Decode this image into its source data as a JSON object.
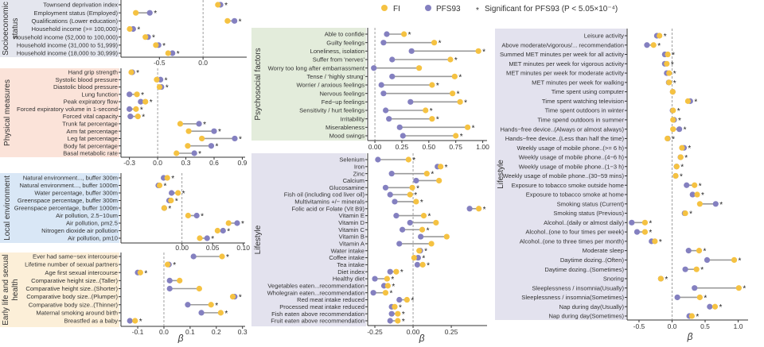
{
  "legend": {
    "fi_label": "FI",
    "pfs_label": "PFS93",
    "sig_symbol": "*",
    "sig_label": "Significant for PFS93 (P < 5.05×10⁻⁴)"
  },
  "colors": {
    "fi": "#f5c242",
    "pfs93": "#8480c0",
    "segment": "#9a9a9a"
  },
  "x_axis_label": "β",
  "chart_data": [
    {
      "type": "dumbbell",
      "group": "Socioeconomic status",
      "background": "#e4e6ee",
      "ticks": [
        "-0.5",
        "0.0"
      ],
      "tick_values": [
        -0.5,
        0.0
      ],
      "xlim": [
        -0.94,
        0.5
      ],
      "rows": [
        {
          "label": "Townsend deprivation index",
          "fi": 0.17,
          "pfs": 0.2,
          "sig": true
        },
        {
          "label": "Employment status (Employed)",
          "fi": -0.77,
          "pfs": -0.61,
          "sig": true
        },
        {
          "label": "Qualifications (Lower education)",
          "fi": 0.28,
          "pfs": 0.36,
          "sig": true
        },
        {
          "label": "Household income (>= 100,000)",
          "fi": -0.84,
          "pfs": -0.8,
          "sig": true
        },
        {
          "label": "Household income (52,000 to 100,000)",
          "fi": -0.66,
          "pfs": -0.63,
          "sig": true
        },
        {
          "label": "Household income (31,000 to 51,999)",
          "fi": -0.54,
          "pfs": -0.51,
          "sig": true
        },
        {
          "label": "Household income (18,000 to 30,999)",
          "fi": -0.4,
          "pfs": -0.35,
          "sig": true
        }
      ]
    },
    {
      "type": "dumbbell",
      "group": "Physical measures",
      "background": "#fbe3d9",
      "ticks": [
        "-0.3",
        "0.0",
        "0.3",
        "0.6",
        "0.9"
      ],
      "tick_values": [
        -0.3,
        0.0,
        0.3,
        0.6,
        0.9
      ],
      "xlim": [
        -0.39,
        0.93
      ],
      "rows": [
        {
          "label": "Hand grip strength",
          "fi": -0.28,
          "pfs": -0.27,
          "sig": true
        },
        {
          "label": "Systolic blood pressure",
          "fi": -0.01,
          "pfs": 0.03,
          "sig": true
        },
        {
          "label": "Diastolic blood pressure",
          "fi": 0.02,
          "pfs": 0.04,
          "sig": true
        },
        {
          "label": "Lung function",
          "fi": -0.22,
          "pfs": -0.3,
          "sig": true
        },
        {
          "label": "Peak expiratory flow",
          "fi": -0.13,
          "pfs": -0.18,
          "sig": true
        },
        {
          "label": "Forced expiratory volume in 1-second",
          "fi": -0.23,
          "pfs": -0.3,
          "sig": true
        },
        {
          "label": "Forced vital capacity",
          "fi": -0.21,
          "pfs": -0.29,
          "sig": true
        },
        {
          "label": "Trunk fat percentage",
          "fi": 0.24,
          "pfs": 0.44,
          "sig": true
        },
        {
          "label": "Arm fat percentage",
          "fi": 0.33,
          "pfs": 0.6,
          "sig": true
        },
        {
          "label": "Leg fat percentage",
          "fi": 0.47,
          "pfs": 0.82,
          "sig": true
        },
        {
          "label": "Body fat percentage",
          "fi": 0.32,
          "pfs": 0.57,
          "sig": true
        },
        {
          "label": "Basal metabolic rate",
          "fi": 0.2,
          "pfs": 0.39,
          "sig": true
        }
      ]
    },
    {
      "type": "dumbbell",
      "group": "Local environment",
      "background": "#d9e7f6",
      "ticks": [
        "0.00",
        "0.05",
        "0.10"
      ],
      "tick_values": [
        0.0,
        0.05,
        0.1
      ],
      "xlim": [
        -0.0996,
        0.103
      ],
      "rows": [
        {
          "label": "Natural environment..., buffer 300m",
          "fi": -0.024,
          "pfs": -0.03,
          "sig": true
        },
        {
          "label": "Natural environment..., buffer 1000m",
          "fi": -0.0366,
          "pfs": -0.0386,
          "sig": true
        },
        {
          "label": "Water percentage, buffer 300m",
          "fi": -0.0065,
          "pfs": -0.017,
          "sig": true
        },
        {
          "label": "Greenspace percentage, buffer 300m",
          "fi": -0.018,
          "pfs": -0.021,
          "sig": true
        },
        {
          "label": "Greenspace percentage, buffer 1000m",
          "fi": -0.029,
          "pfs": -0.029,
          "sig": true
        },
        {
          "label": "Air pollution, 2.5−10um",
          "fi": 0.01,
          "pfs": 0.024,
          "sig": true
        },
        {
          "label": "Air pollution, pm2.5",
          "fi": 0.076,
          "pfs": 0.09,
          "sig": true
        },
        {
          "label": "Nitrogen dioxide air pollution",
          "fi": 0.058,
          "pfs": 0.067,
          "sig": true
        },
        {
          "label": "Air pollution, pm10",
          "fi": 0.029,
          "pfs": 0.041,
          "sig": true
        }
      ]
    },
    {
      "type": "dumbbell",
      "group": "Early life and sexual health",
      "background": "#fcefd8",
      "ticks": [
        "-0.1",
        "0.0",
        "0.1",
        "0.2",
        "0.3"
      ],
      "tick_values": [
        -0.1,
        0.0,
        0.1,
        0.2,
        0.3
      ],
      "xlim": [
        -0.164,
        0.31
      ],
      "rows": [
        {
          "label": "Ever had same−sex intercourse",
          "fi": 0.222,
          "pfs": 0.113,
          "sig": true
        },
        {
          "label": "Lifetime number of sexual partners",
          "fi": 0.014,
          "pfs": 0.019,
          "sig": true
        },
        {
          "label": "Age first sexual intercourse",
          "fi": -0.09,
          "pfs": -0.1,
          "sig": true
        },
        {
          "label": "Comparative height size..(Taller)",
          "fi": 0.06,
          "pfs": 0.022,
          "sig": false
        },
        {
          "label": "Comparative height size..(Shorter)",
          "fi": 0.135,
          "pfs": 0.022,
          "sig": false
        },
        {
          "label": "Comparative body size..(Plumper)",
          "fi": 0.263,
          "pfs": 0.27,
          "sig": true
        },
        {
          "label": "Comparative body size..(Thinner)",
          "fi": 0.18,
          "pfs": 0.091,
          "sig": true
        },
        {
          "label": "Maternal smoking around birth",
          "fi": 0.217,
          "pfs": 0.143,
          "sig": true
        },
        {
          "label": "Breastfed as a baby",
          "fi": -0.11,
          "pfs": -0.13,
          "sig": true
        }
      ]
    },
    {
      "type": "dumbbell",
      "group": "Psychosocial factors",
      "background": "#e3ecdb",
      "ticks": [
        "0.00",
        "0.25",
        "0.50",
        "0.75",
        "1.00"
      ],
      "tick_values": [
        0.0,
        0.25,
        0.5,
        0.75,
        1.0
      ],
      "xlim": [
        -0.067,
        1.04
      ],
      "rows": [
        {
          "label": "Able to confide",
          "fi": 0.27,
          "pfs": 0.11,
          "sig": true
        },
        {
          "label": "Guilty feelings",
          "fi": 0.55,
          "pfs": 0.08,
          "sig": true
        },
        {
          "label": "Loneliness, isolation",
          "fi": 0.96,
          "pfs": 0.34,
          "sig": true
        },
        {
          "label": "Suffer from 'nerves'",
          "fi": 0.7,
          "pfs": 0.16,
          "sig": true
        },
        {
          "label": "Worry too long after embarrassment",
          "fi": 0.41,
          "pfs": -0.01,
          "sig": false
        },
        {
          "label": "Tense / 'highly strung'",
          "fi": 0.74,
          "pfs": 0.16,
          "sig": true
        },
        {
          "label": "Worrier / anxious feelings",
          "fi": 0.53,
          "pfs": 0.06,
          "sig": true
        },
        {
          "label": "Nervous feelings",
          "fi": 0.72,
          "pfs": 0.08,
          "sig": true
        },
        {
          "label": "Fed−up feelings",
          "fi": 0.79,
          "pfs": 0.33,
          "sig": true
        },
        {
          "label": "Sensitivity / hurt feelings",
          "fi": 0.47,
          "pfs": 0.1,
          "sig": true
        },
        {
          "label": "Irritability",
          "fi": 0.53,
          "pfs": 0.13,
          "sig": true
        },
        {
          "label": "Miserableness",
          "fi": 0.86,
          "pfs": 0.23,
          "sig": true
        },
        {
          "label": "Mood swings",
          "fi": 0.75,
          "pfs": 0.26,
          "sig": true
        }
      ]
    },
    {
      "type": "dumbbell",
      "group": "Lifestyle",
      "background": "#e3e2ee",
      "ticks": [
        "-0.25",
        "0.00",
        "0.25"
      ],
      "tick_values": [
        -0.25,
        0.0,
        0.25
      ],
      "xlim": [
        -0.297,
        0.484
      ],
      "rows": [
        {
          "label": "Selenium",
          "fi": -0.03,
          "pfs": -0.23,
          "sig": true
        },
        {
          "label": "Iron",
          "fi": 0.18,
          "pfs": 0.16,
          "sig": true
        },
        {
          "label": "Zinc",
          "fi": 0.09,
          "pfs": -0.14,
          "sig": true
        },
        {
          "label": "Calcium",
          "fi": 0.17,
          "pfs": 0.02,
          "sig": false
        },
        {
          "label": "Glucosamine",
          "fi": -0.005,
          "pfs": -0.18,
          "sig": true
        },
        {
          "label": "Fish oil (including cod liver oil)",
          "fi": -0.02,
          "pfs": -0.15,
          "sig": true
        },
        {
          "label": "Multivitamins +/− minerals",
          "fi": 0.02,
          "pfs": -0.12,
          "sig": true
        },
        {
          "label": "Folic acid or Folate (Vit B9)",
          "fi": 0.43,
          "pfs": 0.37,
          "sig": true
        },
        {
          "label": "Vitamin E",
          "fi": 0.07,
          "pfs": -0.11,
          "sig": true
        },
        {
          "label": "Vitamin D",
          "fi": 0.15,
          "pfs": -0.02,
          "sig": false
        },
        {
          "label": "Vitamin C",
          "fi": 0.06,
          "pfs": -0.07,
          "sig": true
        },
        {
          "label": "Vitamin B",
          "fi": 0.22,
          "pfs": 0.05,
          "sig": false
        },
        {
          "label": "Vitamin A",
          "fi": 0.12,
          "pfs": -0.09,
          "sig": false
        },
        {
          "label": "Water intake",
          "fi": 0.04,
          "pfs": 0.047,
          "sig": true
        },
        {
          "label": "Coffee intake",
          "fi": 0.007,
          "pfs": 0.033,
          "sig": true
        },
        {
          "label": "Tea intake",
          "fi": 0.063,
          "pfs": 0.028,
          "sig": true
        },
        {
          "label": "Diet index",
          "fi": -0.11,
          "pfs": -0.15,
          "sig": true
        },
        {
          "label": "Healthy diet",
          "fi": -0.17,
          "pfs": -0.25,
          "sig": true
        },
        {
          "label": "Vegetables eaten...recommendation",
          "fi": -0.165,
          "pfs": -0.19,
          "sig": true
        },
        {
          "label": "Wholegrain eaten...recommendation",
          "fi": -0.18,
          "pfs": -0.26,
          "sig": true
        },
        {
          "label": "Red meat intake reduced",
          "fi": -0.04,
          "pfs": -0.09,
          "sig": true
        },
        {
          "label": "Processed meat intake reduced",
          "fi": -0.12,
          "pfs": -0.14,
          "sig": true
        },
        {
          "label": "Fish eaten above recommendation",
          "fi": -0.1,
          "pfs": -0.14,
          "sig": true
        },
        {
          "label": "Fruit eaten above recommendation",
          "fi": -0.1,
          "pfs": -0.15,
          "sig": true
        }
      ]
    },
    {
      "type": "dumbbell",
      "group": "Lifestyle",
      "background": "#e3e2ee",
      "ticks": [
        "-0.5",
        "0.0",
        "0.5",
        "1.0"
      ],
      "tick_values": [
        -0.5,
        0.0,
        0.5,
        1.0
      ],
      "xlim": [
        -0.68,
        1.15
      ],
      "rows": [
        {
          "label": "Leisure activity",
          "fi": -0.19,
          "pfs": -0.23,
          "sig": true
        },
        {
          "label": "Above moderate/vigorous/... recommendation",
          "fi": -0.28,
          "pfs": -0.38,
          "sig": true
        },
        {
          "label": "Summed MET minutes per week for all activity",
          "fi": -0.065,
          "pfs": -0.11,
          "sig": true
        },
        {
          "label": "MET minutes per week for vigorous activity",
          "fi": -0.08,
          "pfs": -0.11,
          "sig": true
        },
        {
          "label": "MET minutes per week for moderate activity",
          "fi": -0.045,
          "pfs": -0.08,
          "sig": true
        },
        {
          "label": "MET minutes per week for walking",
          "fi": -0.045,
          "pfs": -0.05,
          "sig": true
        },
        {
          "label": "Time spent using computer",
          "fi": 0.01,
          "pfs": 0.01,
          "sig": false
        },
        {
          "label": "Time spent watching television",
          "fi": 0.24,
          "pfs": 0.275,
          "sig": true
        },
        {
          "label": "Time spent outdoors in winter",
          "fi": 0.015,
          "pfs": 0.008,
          "sig": true
        },
        {
          "label": "Time spend outdoors in summer",
          "fi": 0.015,
          "pfs": 0.03,
          "sig": true
        },
        {
          "label": "Hands−free device..(Always or almost always)",
          "fi": 0.015,
          "pfs": 0.11,
          "sig": true
        },
        {
          "label": "Hands−free device..(Less than half the time)",
          "fi": -0.07,
          "pfs": -0.065,
          "sig": true
        },
        {
          "label": "Weekly usage of mobile phone..(>= 6 h)",
          "fi": 0.15,
          "pfs": 0.18,
          "sig": true
        },
        {
          "label": "Weekly usage of mobile phone..(4−6 h)",
          "fi": 0.13,
          "pfs": 0.128,
          "sig": true
        },
        {
          "label": "Weekly usage of mobile phone..(1−3 h)",
          "fi": 0.07,
          "pfs": 0.068,
          "sig": true
        },
        {
          "label": "Weekly usage of mobile phone..(30−59 mins)",
          "fi": 0.055,
          "pfs": 0.053,
          "sig": true
        },
        {
          "label": "Exposure to tobacco smoke outside home",
          "fi": 0.34,
          "pfs": 0.22,
          "sig": true
        },
        {
          "label": "Exposure to tobacco smoke at home",
          "fi": 0.38,
          "pfs": 0.31,
          "sig": true
        },
        {
          "label": "Smoking status (Current)",
          "fi": 0.42,
          "pfs": 0.66,
          "sig": true
        },
        {
          "label": "Smoking status (Previous)",
          "fi": 0.2,
          "pfs": 0.19,
          "sig": true
        },
        {
          "label": "Alcohol..(daily or almost daily)",
          "fi": -0.41,
          "pfs": -0.61,
          "sig": true
        },
        {
          "label": "Alcohol..(one to four times per week)",
          "fi": -0.41,
          "pfs": -0.53,
          "sig": true
        },
        {
          "label": "Alcohol..(one to three times per month)",
          "fi": -0.26,
          "pfs": -0.31,
          "sig": true
        },
        {
          "label": "Moderate sleep",
          "fi": 0.41,
          "pfs": 0.25,
          "sig": true
        },
        {
          "label": "Daytime dozing..(Often)",
          "fi": 0.94,
          "pfs": 0.53,
          "sig": true
        },
        {
          "label": "Daytime dozing..(Sometimes)",
          "fi": 0.37,
          "pfs": 0.2,
          "sig": true
        },
        {
          "label": "Snoring",
          "fi": -0.17,
          "pfs": -0.17,
          "sig": true,
          "muted": true
        },
        {
          "label": "Sleeplessness / insomnia(Usually)",
          "fi": 1.01,
          "pfs": 0.34,
          "sig": true
        },
        {
          "label": "Sleeplessness / insomnia(Sometimes)",
          "fi": 0.42,
          "pfs": 0.08,
          "sig": true
        },
        {
          "label": "Nap during day(Usually)",
          "fi": 0.65,
          "pfs": 0.57,
          "sig": true
        },
        {
          "label": "Nap during day(Sometimes)",
          "fi": 0.3,
          "pfs": 0.26,
          "sig": true
        }
      ]
    }
  ]
}
